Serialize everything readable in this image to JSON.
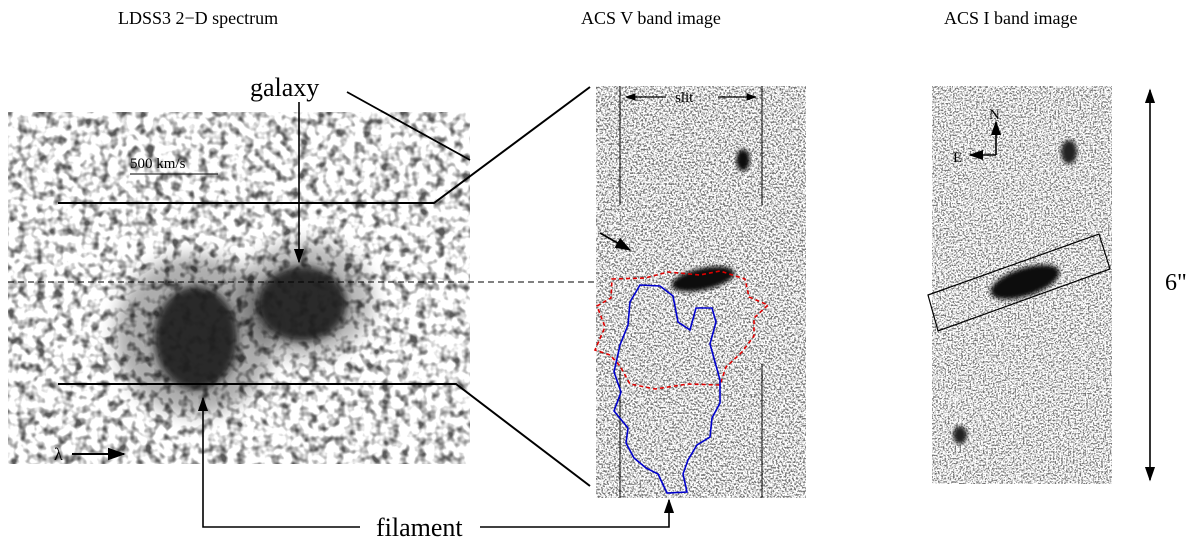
{
  "panels": [
    {
      "id": "spectrum",
      "title": "LDSS3 2−D spectrum"
    },
    {
      "id": "v_band",
      "title": "ACS V band image"
    },
    {
      "id": "i_band",
      "title": "ACS I band image"
    }
  ],
  "labels": {
    "galaxy": "galaxy",
    "filament": "filament",
    "velocity_scale": "500 km/s",
    "wavelength_symbol": "λ",
    "slit": "slit",
    "north": "N",
    "east": "E",
    "angular_scale": "6\""
  },
  "colors": {
    "background": "#ffffff",
    "ink": "#000000",
    "contour_solid": "#0000cc",
    "contour_dashed": "#dd0000"
  }
}
